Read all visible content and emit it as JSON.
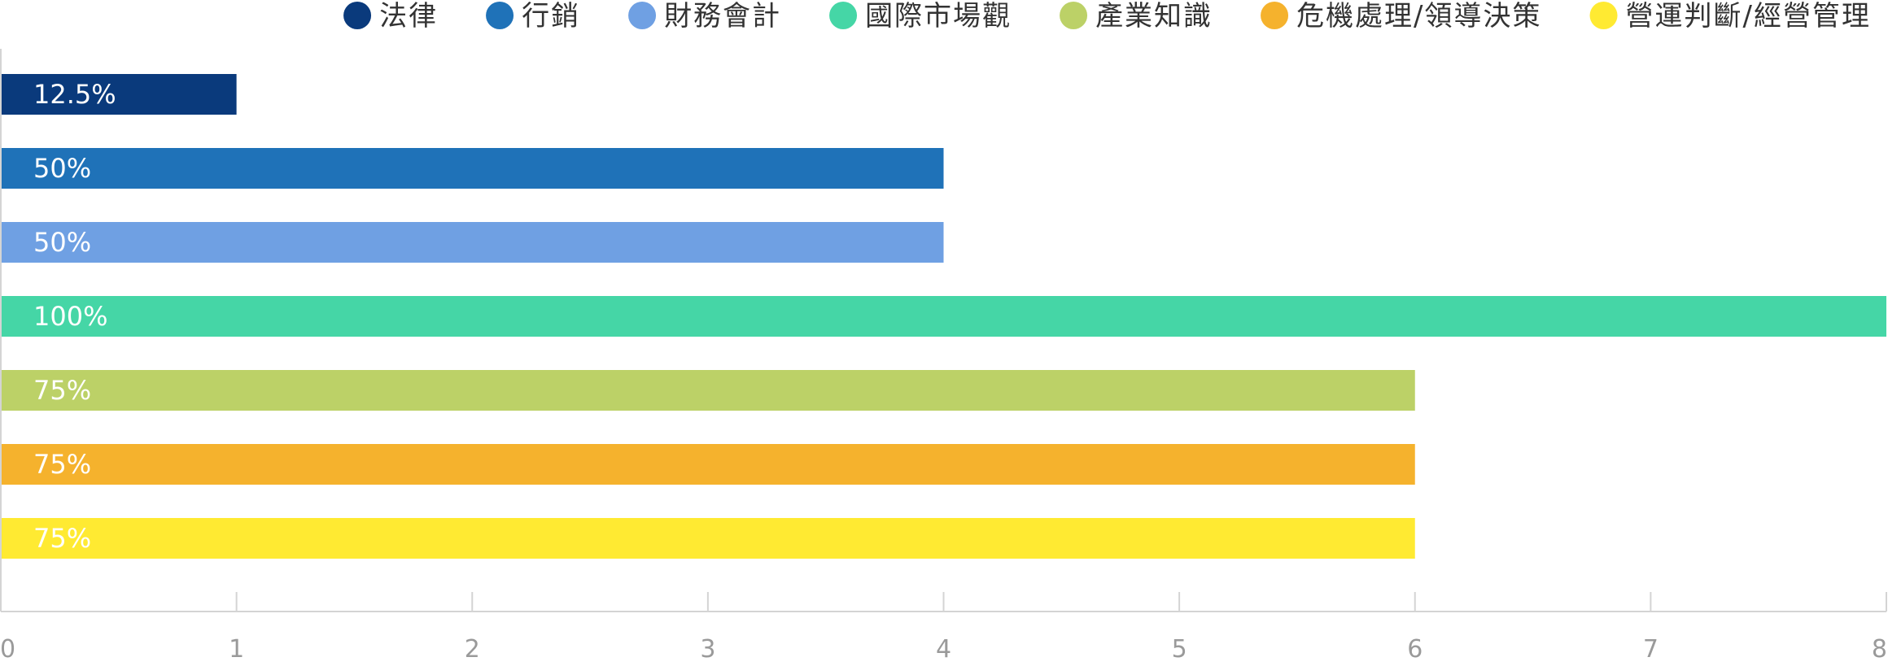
{
  "chart_data": {
    "type": "bar",
    "orientation": "horizontal",
    "title": "",
    "xlabel": "",
    "ylabel": "",
    "xlim": [
      0,
      8
    ],
    "xticks": [
      0,
      1,
      2,
      3,
      4,
      5,
      6,
      7,
      8
    ],
    "grid": false,
    "legend_position": "top-right",
    "series": [
      {
        "name": "法律",
        "value": 1,
        "label": "12.5%",
        "color": "#0a3a7c"
      },
      {
        "name": "行銷",
        "value": 4,
        "label": "50%",
        "color": "#1f72b8"
      },
      {
        "name": "財務會計",
        "value": 4,
        "label": "50%",
        "color": "#6fa0e3"
      },
      {
        "name": "國際市場觀",
        "value": 8,
        "label": "100%",
        "color": "#45d6a6"
      },
      {
        "name": "產業知識",
        "value": 6,
        "label": "75%",
        "color": "#bcd167"
      },
      {
        "name": "危機處理/領導決策",
        "value": 6,
        "label": "75%",
        "color": "#f5b22d"
      },
      {
        "name": "營運判斷/經營管理",
        "value": 6,
        "label": "75%",
        "color": "#ffea32"
      }
    ]
  }
}
